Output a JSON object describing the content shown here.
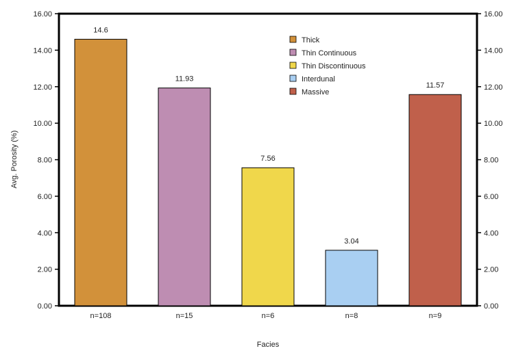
{
  "chart_data": {
    "type": "bar",
    "categories": [
      "n=108",
      "n=15",
      "n=6",
      "n=8",
      "n=9"
    ],
    "series": [
      {
        "name": "Thick",
        "color": "#D2913A",
        "value": 14.6,
        "label": "14.6"
      },
      {
        "name": "Thin Continuous",
        "color": "#BE8DB2",
        "value": 11.93,
        "label": "11.93"
      },
      {
        "name": "Thin Discontinuous",
        "color": "#F0D74B",
        "value": 7.56,
        "label": "7.56"
      },
      {
        "name": "Interdunal",
        "color": "#A9CFF2",
        "value": 3.04,
        "label": "3.04"
      },
      {
        "name": "Massive",
        "color": "#C0604B",
        "value": 11.57,
        "label": "11.57"
      }
    ],
    "xlabel": "Facies",
    "ylabel": "Avg. Porosity (%)",
    "ylim": [
      0,
      16
    ],
    "yticks": [
      "0.00",
      "2.00",
      "4.00",
      "6.00",
      "8.00",
      "10.00",
      "12.00",
      "14.00",
      "16.00"
    ],
    "secondary_y_axis": true,
    "grid": false,
    "legend_position": "top-right"
  }
}
